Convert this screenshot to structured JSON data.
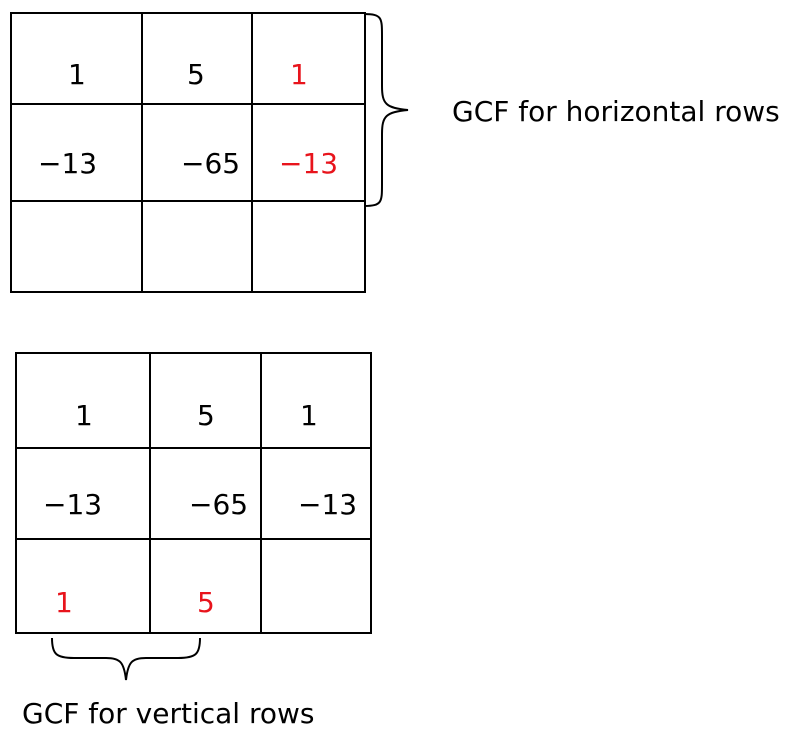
{
  "top_grid": {
    "cells": [
      [
        "1",
        "5",
        "1"
      ],
      [
        "−13",
        "−65",
        "−13"
      ],
      [
        "",
        "",
        ""
      ]
    ],
    "highlight_color": "#e8141c"
  },
  "bottom_grid": {
    "cells": [
      [
        "1",
        "5",
        "1"
      ],
      [
        "−13",
        "−65",
        "−13"
      ],
      [
        "1",
        "5",
        ""
      ]
    ],
    "highlight_color": "#e8141c"
  },
  "labels": {
    "horizontal": "GCF for horizontal rows",
    "vertical": "GCF for vertical rows"
  }
}
